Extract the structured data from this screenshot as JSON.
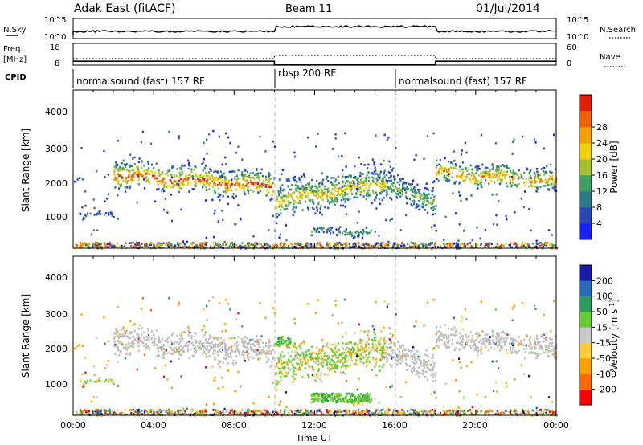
{
  "header": {
    "title": "Adak East (fitACF)",
    "beam": "Beam 11",
    "date": "01/Jul/2014"
  },
  "nsky_panel": {
    "left_label": "N.Sky",
    "left_ticks": [
      "10^5",
      "10^0"
    ],
    "right_label": "N.Search",
    "right_ticks": [
      "10^5",
      "10^0"
    ]
  },
  "freq_panel": {
    "left_label_top": "Freq.",
    "left_label_bottom": "[MHz]",
    "left_ticks": [
      "18",
      "8"
    ],
    "right_label": "Nave",
    "right_ticks": [
      "60",
      "0"
    ]
  },
  "cpid_panel": {
    "label": "CPID",
    "segments": [
      {
        "text": "normalsound (fast) 157 RF"
      },
      {
        "text": "rbsp 200 RF"
      },
      {
        "text": "normalsound (fast) 157 RF"
      }
    ]
  },
  "power_panel": {
    "ylabel": "Slant Range [km]",
    "yticks": [
      "1000",
      "2000",
      "3000",
      "4000"
    ],
    "colorbar_label": "Power [dB]",
    "colorbar_ticks": [
      "4",
      "8",
      "12",
      "16",
      "20",
      "24",
      "28"
    ],
    "colorbar_colors": [
      "#1a20ff",
      "#2a48b8",
      "#2a7a8a",
      "#3ea060",
      "#a8c030",
      "#f0d000",
      "#f0a000",
      "#f06000",
      "#e02000"
    ]
  },
  "velocity_panel": {
    "ylabel": "Slant Range [km]",
    "yticks": [
      "1000",
      "2000",
      "3000",
      "4000"
    ],
    "colorbar_label": "Velocity [m s",
    "colorbar_label_sup": "-1",
    "colorbar_label_close": "]",
    "colorbar_ticks": [
      "-200",
      "-100",
      "-50",
      "-15",
      "15",
      "50",
      "100",
      "200"
    ],
    "colorbar_colors": [
      "#ff0000",
      "#ff6a00",
      "#ffa000",
      "#ffcc33",
      "#c8c8c8",
      "#66cc33",
      "#2a9c5a",
      "#2a6ab8",
      "#1a1aa8"
    ],
    "ground_scatter_color": "#c0c0c0"
  },
  "x_axis": {
    "xlabel": "Time UT",
    "ticks": [
      "00:00",
      "04:00",
      "08:00",
      "12:00",
      "16:00",
      "20:00",
      "00:00"
    ]
  },
  "chart_data": {
    "type": "heatmap",
    "title": "Adak East (fitACF)",
    "subtitle": "Beam 11",
    "xlabel": "Time UT",
    "ylabel": "Slant Range [km]",
    "xlim_hours": [
      0,
      24
    ],
    "ylim_km": [
      180,
      4700
    ],
    "cpid_changes_hours": [
      10,
      16
    ],
    "scatter_bands": [
      {
        "t_start": 2.0,
        "t_end": 10.0,
        "range_start_km": 2350,
        "range_end_km": 2000,
        "width_km": 450,
        "peak_power_db": 28
      },
      {
        "t_start": 10.0,
        "t_end": 15.5,
        "range_start_km": 1600,
        "range_end_km": 2150,
        "width_km": 600,
        "peak_power_db": 20
      },
      {
        "t_start": 15.5,
        "t_end": 18.0,
        "range_start_km": 2000,
        "range_end_km": 1600,
        "width_km": 500,
        "peak_power_db": 14
      },
      {
        "t_start": 18.0,
        "t_end": 24.0,
        "range_start_km": 2400,
        "range_end_km": 2150,
        "width_km": 400,
        "peak_power_db": 24
      },
      {
        "t_start": 11.8,
        "t_end": 14.8,
        "range_start_km": 700,
        "range_end_km": 700,
        "width_km": 150,
        "peak_power_db": 12
      },
      {
        "t_start": 0.3,
        "t_end": 2.0,
        "range_start_km": 1150,
        "range_end_km": 1150,
        "width_km": 100,
        "peak_power_db": 8
      }
    ],
    "velocity_features": [
      {
        "t_start": 10.0,
        "t_end": 10.8,
        "range_km": 2300,
        "velocity_ms": 50
      },
      {
        "t_start": 11.8,
        "t_end": 14.8,
        "range_km": 700,
        "velocity_ms": 50
      }
    ],
    "nsky_level": [
      {
        "t_start": 0.0,
        "t_end": 10.0,
        "level": "low"
      },
      {
        "t_start": 10.0,
        "t_end": 18.0,
        "level": "high"
      },
      {
        "t_start": 18.0,
        "t_end": 24.0,
        "level": "low"
      }
    ],
    "frequency_mhz": [
      {
        "t_start": 0.0,
        "t_end": 10.0,
        "value": 12
      },
      {
        "t_start": 10.0,
        "t_end": 18.0,
        "value": 10.3
      },
      {
        "t_start": 18.0,
        "t_end": 24.0,
        "value": 12
      }
    ],
    "nave": [
      {
        "t_start": 0.0,
        "t_end": 10.0,
        "value": 15
      },
      {
        "t_start": 10.0,
        "t_end": 18.0,
        "value": 25
      },
      {
        "t_start": 18.0,
        "t_end": 24.0,
        "value": 15
      }
    ]
  }
}
